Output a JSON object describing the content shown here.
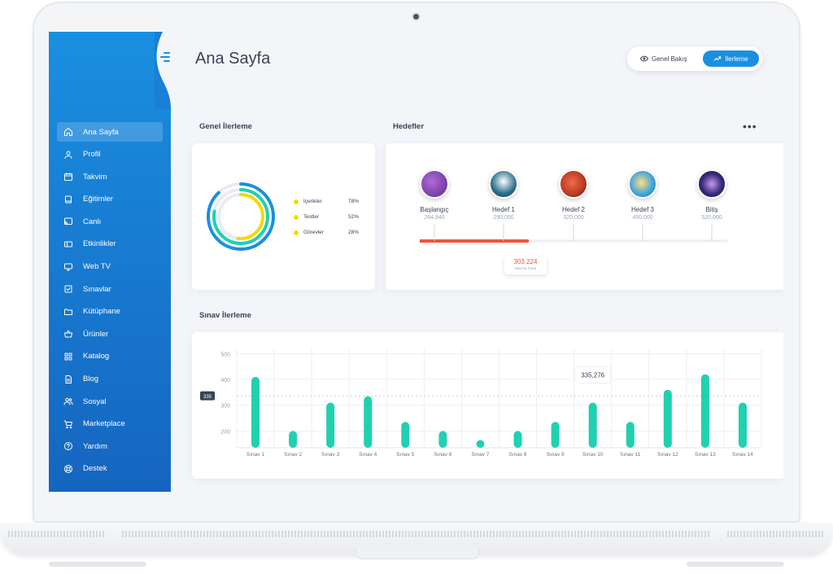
{
  "header": {
    "title": "Ana Sayfa",
    "toggle": {
      "overview_label": "Genel Bakış",
      "progress_label": "İlerleme",
      "active": "progress"
    }
  },
  "sidebar": {
    "items": [
      {
        "label": "Ana Sayfa",
        "icon": "home-icon",
        "active": true
      },
      {
        "label": "Profil",
        "icon": "user-icon"
      },
      {
        "label": "Takvim",
        "icon": "calendar-icon"
      },
      {
        "label": "Eğitimler",
        "icon": "book-icon"
      },
      {
        "label": "Canlı",
        "icon": "cast-icon"
      },
      {
        "label": "Etkinlikler",
        "icon": "ticket-icon"
      },
      {
        "label": "Web TV",
        "icon": "monitor-icon"
      },
      {
        "label": "Sınavlar",
        "icon": "checkbox-icon"
      },
      {
        "label": "Kütüphane",
        "icon": "folder-icon"
      },
      {
        "label": "Ürünler",
        "icon": "basket-icon"
      },
      {
        "label": "Katalog",
        "icon": "grid-icon"
      },
      {
        "label": "Blog",
        "icon": "document-icon"
      },
      {
        "label": "Sosyal",
        "icon": "users-icon"
      },
      {
        "label": "Marketplace",
        "icon": "cart-icon"
      },
      {
        "label": "Yardım",
        "icon": "help-icon"
      },
      {
        "label": "Destek",
        "icon": "lifebuoy-icon"
      }
    ]
  },
  "general_progress": {
    "title": "Genel İlerleme",
    "items": [
      {
        "label": "İçerikler",
        "value": "78%",
        "fraction": 0.78
      },
      {
        "label": "Testler",
        "value": "52%",
        "fraction": 0.52
      },
      {
        "label": "Görevler",
        "value": "28%",
        "fraction": 0.28
      }
    ]
  },
  "goals": {
    "title": "Hedefler",
    "more_label": "•••",
    "milestones": [
      {
        "name": "Başlangıç",
        "points": "264,940",
        "icon": "rocket-icon"
      },
      {
        "name": "Hedef 1",
        "points": "290,000",
        "icon": "astronaut-icon"
      },
      {
        "name": "Hedef 2",
        "points": "320,000",
        "icon": "planet-icon"
      },
      {
        "name": "Hedef 3",
        "points": "450,000",
        "icon": "telescope-icon"
      },
      {
        "name": "Bitiş",
        "points": "520,000",
        "icon": "galaxy-icon"
      }
    ],
    "current": {
      "value": "303,224",
      "label": "Mevcut Puan",
      "progress_fraction": 0.35
    },
    "colors": {
      "progress": "#f0533a",
      "track": "#eceff3"
    }
  },
  "exam_progress": {
    "title": "Sınav İlerleme"
  },
  "chart_data": {
    "type": "bar",
    "categories": [
      "Sınav 1",
      "Sınav 2",
      "Sınav 3",
      "Sınav 4",
      "Sınav 5",
      "Sınav 6",
      "Sınav 7",
      "Sınav 8",
      "Sınav 9",
      "Sınav 10",
      "Sınav 11",
      "Sınav 12",
      "Sınav 13",
      "Sınav 14"
    ],
    "values": [
      410,
      200,
      310,
      335,
      235,
      200,
      165,
      200,
      235,
      310,
      235,
      360,
      420,
      310
    ],
    "yticks": [
      200,
      300,
      400,
      500
    ],
    "ylim": [
      135,
      520
    ],
    "reference_line": {
      "value": 335,
      "label": "335"
    },
    "highlight": {
      "category": "Sınav 10",
      "label": "335,276"
    },
    "grid": true,
    "bar_color": "#1fd1b0"
  }
}
